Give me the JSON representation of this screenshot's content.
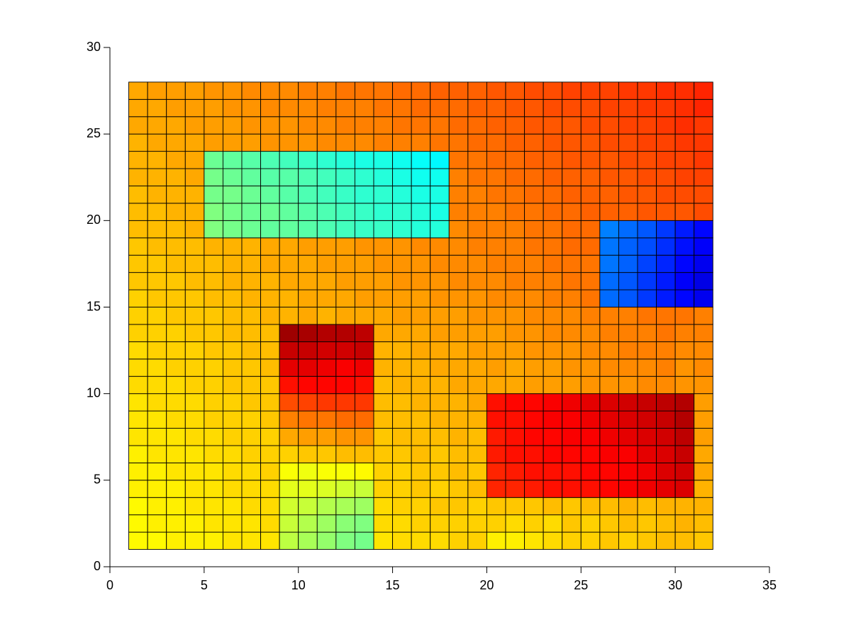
{
  "chart_data": {
    "type": "heatmap",
    "colormap": "jet",
    "clim": [
      0,
      100
    ],
    "x_edges": [
      1,
      2,
      3,
      4,
      5,
      6,
      7,
      8,
      9,
      10,
      11,
      12,
      13,
      14,
      15,
      16,
      17,
      18,
      19,
      20,
      21,
      22,
      23,
      24,
      25,
      26,
      27,
      28,
      29,
      30,
      31,
      32
    ],
    "y_edges": [
      1,
      2,
      3,
      4,
      5,
      6,
      7,
      8,
      9,
      10,
      11,
      12,
      13,
      14,
      15,
      16,
      17,
      18,
      19,
      20,
      21,
      22,
      23,
      24,
      25,
      26,
      27,
      28
    ],
    "z": [
      [
        63,
        63,
        64,
        64,
        64,
        65,
        65,
        65,
        56,
        54,
        52,
        50,
        49,
        65,
        66,
        66,
        66,
        67,
        67,
        64,
        64,
        65,
        66,
        67,
        67,
        68,
        67,
        68,
        69,
        69,
        68
      ],
      [
        63,
        64,
        64,
        64,
        65,
        65,
        65,
        66,
        57,
        55,
        53,
        51,
        50,
        66,
        66,
        67,
        67,
        67,
        67,
        67,
        66,
        67,
        66,
        68,
        67,
        68,
        69,
        68,
        69,
        70,
        69
      ],
      [
        63,
        64,
        64,
        65,
        65,
        65,
        66,
        66,
        58,
        57,
        55,
        54,
        53,
        66,
        67,
        67,
        68,
        68,
        67,
        68,
        68,
        68,
        69,
        68,
        69,
        69,
        70,
        69,
        70,
        70,
        70
      ],
      [
        64,
        64,
        64,
        65,
        65,
        66,
        66,
        66,
        60,
        60,
        59,
        58,
        57,
        67,
        67,
        68,
        67,
        68,
        69,
        84,
        84,
        85,
        86,
        86,
        86,
        87,
        88,
        89,
        90,
        91,
        70
      ],
      [
        64,
        64,
        65,
        65,
        65,
        66,
        66,
        67,
        62,
        61,
        62,
        62,
        63,
        67,
        67,
        68,
        68,
        69,
        68,
        84,
        85,
        86,
        86,
        86,
        87,
        87,
        88,
        89,
        91,
        92,
        71
      ],
      [
        64,
        65,
        65,
        65,
        66,
        66,
        67,
        67,
        67,
        68,
        68,
        69,
        69,
        68,
        68,
        69,
        68,
        69,
        69,
        85,
        86,
        86,
        87,
        87,
        87,
        88,
        88,
        90,
        91,
        93,
        71
      ],
      [
        65,
        65,
        65,
        66,
        66,
        67,
        67,
        67,
        71,
        72,
        72,
        73,
        73,
        68,
        69,
        69,
        69,
        70,
        69,
        85,
        86,
        87,
        87,
        88,
        88,
        89,
        90,
        91,
        92,
        94,
        72
      ],
      [
        65,
        65,
        66,
        66,
        67,
        67,
        67,
        68,
        75,
        76,
        76,
        77,
        77,
        69,
        69,
        69,
        70,
        70,
        70,
        86,
        86,
        87,
        88,
        88,
        89,
        90,
        91,
        92,
        93,
        95,
        72
      ],
      [
        65,
        66,
        66,
        66,
        67,
        67,
        68,
        68,
        80,
        81,
        82,
        82,
        82,
        69,
        69,
        70,
        70,
        70,
        71,
        86,
        87,
        87,
        88,
        89,
        90,
        91,
        92,
        93,
        94,
        95,
        72
      ],
      [
        66,
        66,
        66,
        67,
        67,
        68,
        68,
        68,
        86,
        87,
        87,
        87,
        86,
        69,
        70,
        70,
        70,
        71,
        71,
        71,
        71,
        72,
        72,
        72,
        73,
        73,
        73,
        74,
        74,
        73,
        73
      ],
      [
        66,
        66,
        67,
        67,
        67,
        68,
        68,
        69,
        90,
        90,
        89,
        88,
        89,
        70,
        70,
        70,
        71,
        71,
        71,
        72,
        71,
        72,
        72,
        73,
        73,
        74,
        74,
        74,
        75,
        73,
        74
      ],
      [
        66,
        67,
        67,
        67,
        68,
        68,
        69,
        69,
        93,
        93,
        92,
        92,
        93,
        70,
        70,
        71,
        71,
        71,
        72,
        72,
        72,
        73,
        73,
        73,
        74,
        74,
        75,
        75,
        75,
        74,
        74
      ],
      [
        67,
        67,
        67,
        68,
        68,
        69,
        69,
        69,
        97,
        96,
        95,
        95,
        94,
        71,
        71,
        71,
        72,
        72,
        72,
        72,
        73,
        73,
        74,
        74,
        74,
        75,
        75,
        75,
        76,
        75,
        75
      ],
      [
        67,
        67,
        68,
        68,
        68,
        69,
        69,
        70,
        70,
        71,
        70,
        71,
        71,
        71,
        72,
        72,
        72,
        72,
        73,
        73,
        73,
        74,
        74,
        74,
        75,
        75,
        75,
        76,
        76,
        76,
        75
      ],
      [
        67,
        68,
        68,
        68,
        69,
        69,
        70,
        70,
        70,
        71,
        71,
        71,
        72,
        72,
        72,
        72,
        73,
        73,
        73,
        74,
        74,
        74,
        75,
        75,
        76,
        23,
        21,
        18,
        15,
        13,
        11
      ],
      [
        68,
        68,
        68,
        69,
        69,
        70,
        70,
        70,
        71,
        71,
        71,
        72,
        72,
        72,
        73,
        73,
        73,
        74,
        74,
        74,
        75,
        75,
        75,
        76,
        76,
        23,
        21,
        18,
        15,
        12,
        10
      ],
      [
        68,
        68,
        69,
        69,
        69,
        70,
        70,
        71,
        71,
        71,
        72,
        72,
        72,
        73,
        73,
        73,
        74,
        74,
        74,
        75,
        75,
        75,
        76,
        76,
        76,
        24,
        22,
        19,
        16,
        13,
        11
      ],
      [
        68,
        69,
        69,
        69,
        70,
        70,
        70,
        71,
        71,
        72,
        72,
        72,
        73,
        73,
        73,
        74,
        74,
        74,
        75,
        75,
        75,
        76,
        76,
        77,
        77,
        24,
        22,
        20,
        17,
        14,
        12
      ],
      [
        69,
        69,
        69,
        70,
        50,
        49,
        48,
        47,
        47,
        46,
        45,
        44,
        43,
        43,
        42,
        41,
        41,
        74,
        75,
        75,
        75,
        76,
        76,
        77,
        77,
        25,
        23,
        21,
        18,
        15,
        13
      ],
      [
        69,
        69,
        70,
        70,
        50,
        49,
        48,
        48,
        47,
        46,
        45,
        44,
        43,
        42,
        42,
        41,
        40,
        75,
        75,
        75,
        76,
        76,
        77,
        77,
        78,
        78,
        78,
        79,
        79,
        79,
        80
      ],
      [
        69,
        70,
        70,
        70,
        49,
        49,
        48,
        47,
        46,
        45,
        44,
        43,
        42,
        42,
        41,
        40,
        40,
        75,
        75,
        76,
        76,
        77,
        77,
        78,
        78,
        78,
        79,
        79,
        80,
        80,
        80
      ],
      [
        70,
        70,
        70,
        71,
        49,
        48,
        47,
        46,
        46,
        45,
        44,
        43,
        42,
        41,
        40,
        39,
        39,
        75,
        76,
        76,
        77,
        77,
        78,
        78,
        78,
        79,
        79,
        80,
        80,
        81,
        81
      ],
      [
        70,
        70,
        71,
        71,
        48,
        47,
        46,
        45,
        44,
        43,
        42,
        41,
        40,
        40,
        39,
        38,
        37,
        76,
        76,
        77,
        77,
        78,
        78,
        79,
        79,
        79,
        80,
        80,
        81,
        81,
        82
      ],
      [
        70,
        71,
        71,
        71,
        72,
        72,
        72,
        73,
        73,
        73,
        74,
        74,
        74,
        75,
        75,
        75,
        76,
        76,
        77,
        77,
        78,
        78,
        79,
        79,
        79,
        80,
        80,
        81,
        81,
        82,
        82
      ],
      [
        71,
        71,
        71,
        72,
        72,
        72,
        73,
        73,
        73,
        74,
        74,
        75,
        75,
        75,
        76,
        76,
        76,
        77,
        77,
        78,
        78,
        79,
        79,
        79,
        80,
        80,
        81,
        81,
        82,
        83,
        82
      ],
      [
        71,
        71,
        72,
        72,
        72,
        73,
        73,
        74,
        74,
        74,
        75,
        75,
        75,
        76,
        76,
        77,
        77,
        77,
        78,
        78,
        79,
        79,
        80,
        80,
        80,
        81,
        81,
        82,
        82,
        83,
        84
      ],
      [
        71,
        72,
        72,
        72,
        73,
        73,
        74,
        74,
        74,
        75,
        75,
        76,
        76,
        76,
        77,
        77,
        78,
        78,
        78,
        79,
        79,
        80,
        80,
        81,
        81,
        81,
        82,
        82,
        83,
        83,
        84
      ]
    ],
    "xlim": [
      0,
      35
    ],
    "xticks": [
      0,
      5,
      10,
      15,
      20,
      25,
      30,
      35
    ],
    "ylim": [
      0,
      30
    ],
    "yticks": [
      0,
      5,
      10,
      15,
      20,
      25,
      30
    ]
  }
}
